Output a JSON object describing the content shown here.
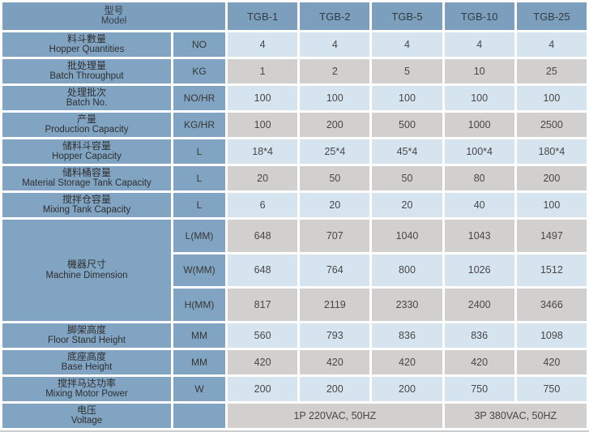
{
  "colors": {
    "header_bg": "#7b9fbd",
    "label_bg": "#81a4c2",
    "cell_blue": "#d5e4ef",
    "cell_gray": "#d1d0ce"
  },
  "header": {
    "model_zh": "型号",
    "model_en": "Model",
    "columns": [
      "TGB-1",
      "TGB-2",
      "TGB-5",
      "TGB-10",
      "TGB-25"
    ]
  },
  "rows": [
    {
      "zh": "料斗數量",
      "en": "Hopper Quantities",
      "unit": "NO",
      "values": [
        "4",
        "4",
        "4",
        "4",
        "4"
      ]
    },
    {
      "zh": "批处理量",
      "en": "Batch Throughput",
      "unit": "KG",
      "values": [
        "1",
        "2",
        "5",
        "10",
        "25"
      ]
    },
    {
      "zh": "处理批次",
      "en": "Batch No.",
      "unit": "NO/HR",
      "values": [
        "100",
        "100",
        "100",
        "100",
        "100"
      ]
    },
    {
      "zh": "产量",
      "en": "Production Capacity",
      "unit": "KG/HR",
      "values": [
        "100",
        "200",
        "500",
        "1000",
        "2500"
      ]
    },
    {
      "zh": "储料斗容量",
      "en": "Hopper Capacity",
      "unit": "L",
      "values": [
        "18*4",
        "25*4",
        "45*4",
        "100*4",
        "180*4"
      ]
    },
    {
      "zh": "储料桶容量",
      "en": "Material Storage Tank Capacity",
      "unit": "L",
      "values": [
        "20",
        "50",
        "50",
        "80",
        "200"
      ]
    },
    {
      "zh": "搅拌仓容量",
      "en": "Mixing Tank Capacity",
      "unit": "L",
      "values": [
        "6",
        "20",
        "20",
        "40",
        "100"
      ]
    }
  ],
  "machine_dimension": {
    "zh": "機器尺寸",
    "en": "Machine Dimension",
    "sub_rows": [
      {
        "unit": "L(MM)",
        "values": [
          "648",
          "707",
          "1040",
          "1043",
          "1497"
        ]
      },
      {
        "unit": "W(MM)",
        "values": [
          "648",
          "764",
          "800",
          "1026",
          "1512"
        ]
      },
      {
        "unit": "H(MM)",
        "values": [
          "817",
          "2119",
          "2330",
          "2400",
          "3466"
        ]
      }
    ]
  },
  "rows_lower": [
    {
      "zh": "脚架高度",
      "en": "Floor Stand Height",
      "unit": "MM",
      "values": [
        "560",
        "793",
        "836",
        "836",
        "1098"
      ]
    },
    {
      "zh": "底座高度",
      "en": "Base Height",
      "unit": "MM",
      "values": [
        "420",
        "420",
        "420",
        "420",
        "420"
      ]
    },
    {
      "zh": "搅拌马达功率",
      "en": "Mixing Motor Power",
      "unit": "W",
      "values": [
        "200",
        "200",
        "200",
        "750",
        "750"
      ]
    }
  ],
  "voltage": {
    "zh": "电压",
    "en": "Voltage",
    "unit": "",
    "value_single_phase": "1P 220VAC, 50HZ",
    "value_three_phase": "3P 380VAC, 50HZ"
  }
}
